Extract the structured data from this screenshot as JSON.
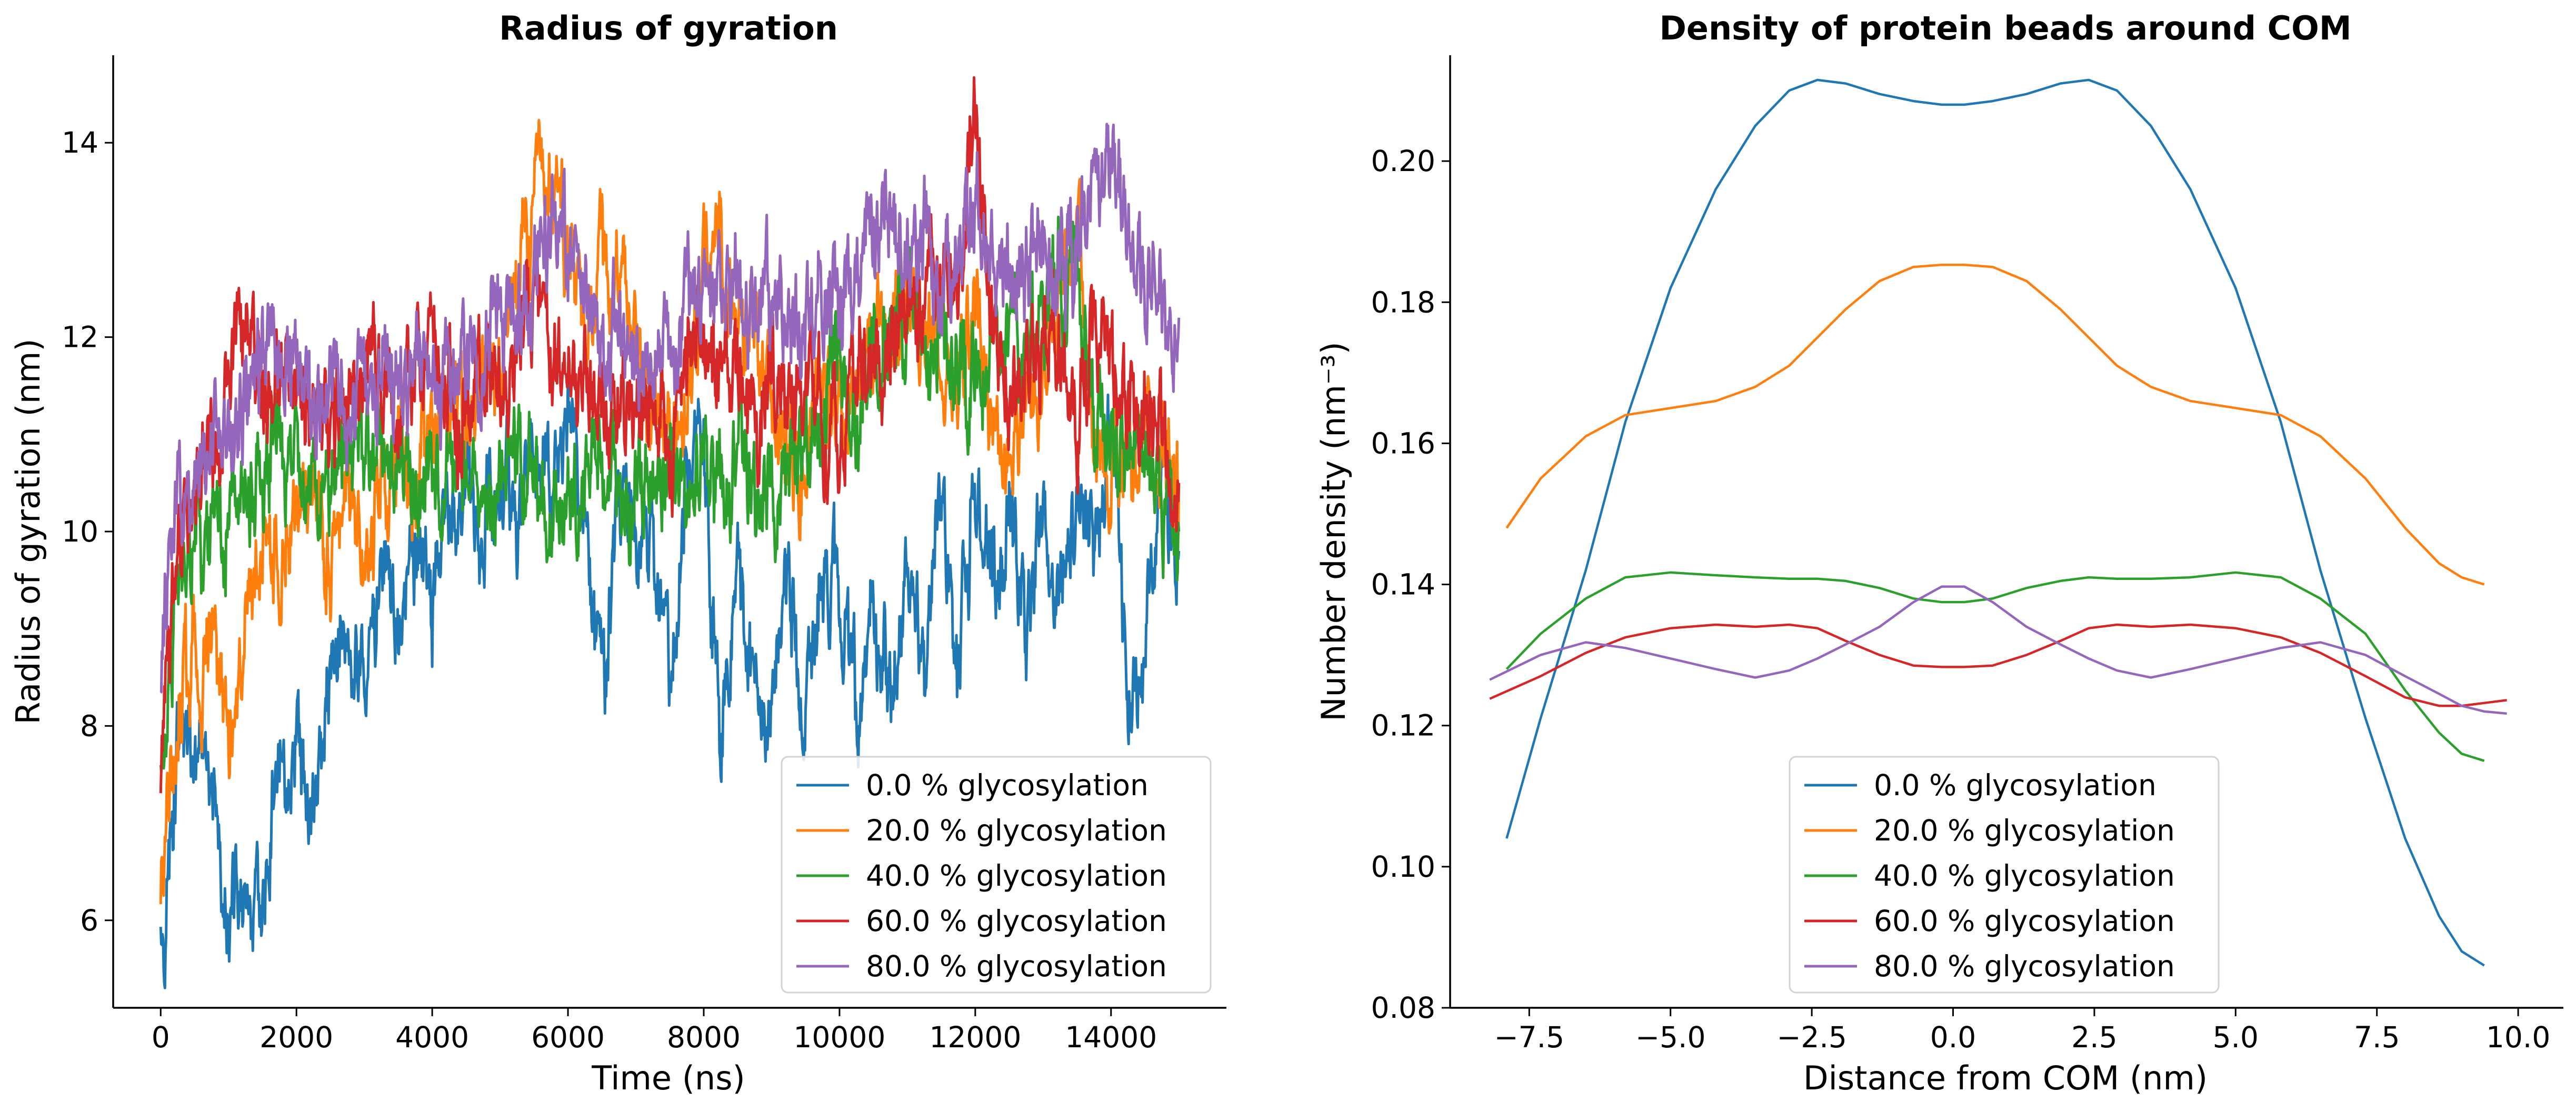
{
  "colors": {
    "0.0 % glycosylation": "#1f77b4",
    "20.0 % glycosylation": "#ff7f0e",
    "40.0 % glycosylation": "#2ca02c",
    "60.0 % glycosylation": "#d62728",
    "80.0 % glycosylation": "#9467bd"
  },
  "chart_data": [
    {
      "type": "line",
      "title": "Radius of gyration",
      "xlabel": "Time (ns)",
      "ylabel": "Radius of gyration (nm)",
      "xlim": [
        -700,
        15700
      ],
      "ylim": [
        5.1,
        14.9
      ],
      "xticks": [
        0,
        2000,
        4000,
        6000,
        8000,
        10000,
        12000,
        14000
      ],
      "xtick_labels": [
        "0",
        "2000",
        "4000",
        "6000",
        "8000",
        "10000",
        "12000",
        "14000"
      ],
      "yticks": [
        6,
        8,
        10,
        12,
        14
      ],
      "ytick_labels": [
        "6",
        "8",
        "10",
        "12",
        "14"
      ],
      "legend": "lower-right",
      "grid": false,
      "series": [
        {
          "name": "0.0 % glycosylation",
          "x": [
            0,
            250,
            500,
            750,
            1000,
            1250,
            1500,
            1750,
            2000,
            2250,
            2500,
            2750,
            3000,
            3250,
            3500,
            3750,
            4000,
            4250,
            4500,
            4750,
            5000,
            5250,
            5500,
            5750,
            6000,
            6250,
            6500,
            6750,
            7000,
            7250,
            7500,
            7750,
            8000,
            8250,
            8500,
            8750,
            9000,
            9250,
            9500,
            9750,
            10000,
            10250,
            10500,
            10750,
            11000,
            11250,
            11500,
            11750,
            12000,
            12250,
            12500,
            12750,
            13000,
            13250,
            13500,
            13750,
            14000,
            14250,
            14500,
            14750,
            15000
          ],
          "y": [
            5.7,
            7.5,
            8.0,
            7.0,
            6.2,
            6.0,
            6.5,
            7.6,
            8.0,
            7.3,
            8.3,
            9.0,
            8.6,
            9.5,
            9.0,
            9.8,
            9.3,
            10.0,
            10.5,
            10.0,
            10.8,
            10.2,
            11.0,
            10.5,
            11.3,
            10.0,
            8.5,
            9.8,
            10.3,
            10.0,
            8.7,
            10.5,
            11.0,
            7.8,
            9.5,
            8.5,
            8.0,
            9.8,
            8.0,
            9.5,
            9.5,
            8.2,
            9.5,
            8.5,
            9.5,
            8.8,
            10.5,
            8.5,
            10.5,
            9.5,
            10.2,
            9.0,
            10.2,
            9.5,
            10.5,
            10.0,
            11.0,
            8.5,
            9.0,
            10.5,
            9.8
          ]
        },
        {
          "name": "20.0 % glycosylation",
          "x": [
            0,
            250,
            500,
            750,
            1000,
            1250,
            1500,
            1750,
            2000,
            2250,
            2500,
            2750,
            3000,
            3250,
            3500,
            3750,
            4000,
            4250,
            4500,
            4750,
            5000,
            5250,
            5500,
            5750,
            6000,
            6250,
            6500,
            6750,
            7000,
            7250,
            7500,
            7750,
            8000,
            8250,
            8500,
            8750,
            9000,
            9250,
            9500,
            9750,
            10000,
            10250,
            10500,
            10750,
            11000,
            11250,
            11500,
            11750,
            12000,
            12250,
            12500,
            12750,
            13000,
            13250,
            13500,
            13750,
            14000,
            14250,
            14500,
            14750,
            15000
          ],
          "y": [
            6.5,
            8.2,
            8.8,
            8.5,
            8.0,
            9.0,
            9.8,
            9.5,
            10.0,
            10.3,
            10.0,
            10.5,
            10.2,
            10.3,
            10.8,
            10.5,
            11.0,
            11.3,
            11.3,
            11.5,
            12.0,
            12.8,
            13.2,
            13.5,
            13.0,
            12.0,
            12.8,
            12.5,
            12.0,
            11.0,
            10.8,
            11.5,
            12.5,
            13.0,
            12.2,
            12.2,
            11.5,
            11.0,
            10.8,
            11.5,
            11.0,
            11.3,
            11.8,
            12.0,
            12.5,
            12.0,
            11.8,
            12.0,
            12.2,
            11.0,
            10.8,
            11.5,
            11.5,
            12.5,
            13.0,
            11.0,
            10.8,
            10.5,
            11.0,
            11.0,
            10.5
          ]
        },
        {
          "name": "40.0 % glycosylation",
          "x": [
            0,
            250,
            500,
            750,
            1000,
            1250,
            1500,
            1750,
            2000,
            2250,
            2500,
            2750,
            3000,
            3250,
            3500,
            3750,
            4000,
            4250,
            4500,
            4750,
            5000,
            5250,
            5500,
            5750,
            6000,
            6250,
            6500,
            6750,
            7000,
            7250,
            7500,
            7750,
            8000,
            8250,
            8500,
            8750,
            9000,
            9250,
            9500,
            9750,
            10000,
            10250,
            10500,
            10750,
            11000,
            11250,
            11500,
            11750,
            12000,
            12250,
            12500,
            12750,
            13000,
            13250,
            13500,
            13750,
            14000,
            14250,
            14500,
            14750,
            15000
          ],
          "y": [
            7.5,
            9.5,
            9.8,
            10.0,
            10.2,
            10.5,
            10.5,
            10.8,
            10.6,
            10.8,
            10.5,
            10.7,
            11.0,
            10.8,
            10.8,
            10.6,
            10.5,
            10.8,
            11.0,
            10.5,
            10.8,
            10.8,
            10.6,
            10.5,
            10.4,
            10.5,
            10.8,
            10.5,
            10.2,
            10.5,
            10.8,
            10.5,
            10.8,
            10.5,
            10.8,
            10.3,
            10.5,
            10.5,
            11.0,
            11.2,
            11.5,
            11.0,
            11.8,
            12.2,
            12.0,
            11.8,
            12.0,
            11.5,
            11.5,
            11.8,
            12.0,
            11.5,
            12.2,
            12.8,
            12.5,
            11.5,
            11.0,
            10.8,
            11.0,
            10.5,
            10.0
          ]
        },
        {
          "name": "60.0 % glycosylation",
          "x": [
            0,
            250,
            500,
            750,
            1000,
            1250,
            1500,
            1750,
            2000,
            2250,
            2500,
            2750,
            3000,
            3250,
            3500,
            3750,
            4000,
            4250,
            4500,
            4750,
            5000,
            5250,
            5500,
            5750,
            6000,
            6250,
            6500,
            6750,
            7000,
            7250,
            7500,
            7750,
            8000,
            8250,
            8500,
            8750,
            9000,
            9250,
            9500,
            9750,
            10000,
            10250,
            10500,
            10750,
            11000,
            11250,
            11500,
            11750,
            12000,
            12250,
            12500,
            12750,
            13000,
            13250,
            13500,
            13750,
            14000,
            14250,
            14500,
            14750,
            15000
          ],
          "y": [
            7.0,
            10.0,
            10.5,
            11.0,
            11.5,
            12.0,
            11.5,
            11.8,
            11.5,
            11.2,
            11.0,
            11.5,
            11.8,
            11.5,
            11.3,
            11.8,
            12.0,
            11.5,
            11.3,
            11.5,
            11.8,
            12.0,
            12.5,
            12.0,
            11.8,
            11.5,
            11.3,
            11.0,
            11.5,
            11.0,
            10.8,
            11.5,
            12.0,
            11.5,
            11.5,
            11.0,
            11.5,
            11.3,
            11.5,
            11.0,
            11.2,
            11.5,
            11.8,
            12.0,
            12.3,
            12.5,
            12.8,
            12.5,
            14.5,
            12.0,
            11.8,
            11.5,
            11.8,
            12.0,
            11.5,
            12.0,
            11.5,
            11.2,
            11.5,
            11.0,
            10.5
          ]
        },
        {
          "name": "80.0 % glycosylation",
          "x": [
            0,
            250,
            500,
            750,
            1000,
            1250,
            1500,
            1750,
            2000,
            2250,
            2500,
            2750,
            3000,
            3250,
            3500,
            3750,
            4000,
            4250,
            4500,
            4750,
            5000,
            5250,
            5500,
            5750,
            6000,
            6250,
            6500,
            6750,
            7000,
            7250,
            7500,
            7750,
            8000,
            8250,
            8500,
            8750,
            9000,
            9250,
            9500,
            9750,
            10000,
            10250,
            10500,
            10750,
            11000,
            11250,
            11500,
            11750,
            12000,
            12250,
            12500,
            12750,
            13000,
            13250,
            13500,
            13750,
            14000,
            14250,
            14500,
            14750,
            15000
          ],
          "y": [
            8.5,
            10.3,
            10.5,
            10.8,
            11.2,
            11.5,
            11.8,
            11.7,
            11.5,
            11.3,
            11.5,
            11.2,
            11.5,
            11.4,
            11.5,
            11.6,
            11.5,
            11.8,
            11.6,
            12.0,
            12.2,
            12.5,
            12.8,
            13.2,
            13.0,
            12.5,
            12.0,
            12.3,
            12.0,
            11.8,
            12.0,
            12.3,
            12.5,
            12.8,
            12.5,
            12.2,
            12.5,
            12.0,
            12.2,
            12.5,
            12.5,
            12.8,
            13.3,
            13.5,
            13.0,
            13.2,
            12.8,
            12.9,
            13.2,
            13.0,
            12.5,
            12.8,
            13.0,
            12.5,
            12.8,
            13.2,
            14.0,
            13.0,
            12.8,
            12.5,
            12.2
          ]
        }
      ]
    },
    {
      "type": "line",
      "title": "Density of protein beads around COM",
      "xlabel": "Distance from COM (nm)",
      "ylabel": "Number density (nm⁻³)",
      "xlim": [
        -8.9,
        10.8
      ],
      "ylim": [
        0.08,
        0.215
      ],
      "xticks": [
        -7.5,
        -5.0,
        -2.5,
        0.0,
        2.5,
        5.0,
        7.5,
        10.0
      ],
      "xtick_labels": [
        "−7.5",
        "−5.0",
        "−2.5",
        "0.0",
        "2.5",
        "5.0",
        "7.5",
        "10.0"
      ],
      "yticks": [
        0.08,
        0.1,
        0.12,
        0.14,
        0.16,
        0.18,
        0.2
      ],
      "ytick_labels": [
        "0.08",
        "0.10",
        "0.12",
        "0.14",
        "0.16",
        "0.18",
        "0.20"
      ],
      "legend": "lower-center",
      "grid": false,
      "series": [
        {
          "name": "0.0 % glycosylation",
          "x": [
            -7.9,
            -7.3,
            -6.5,
            -5.8,
            -5.0,
            -4.2,
            -3.5,
            -2.9,
            -2.4,
            -1.9,
            -1.3,
            -0.7,
            -0.2,
            0.2,
            0.7,
            1.3,
            1.9,
            2.4,
            2.9,
            3.5,
            4.2,
            5.0,
            5.8,
            6.5,
            7.3,
            8.0,
            8.6,
            9.0,
            9.4
          ],
          "y": [
            0.104,
            0.121,
            0.142,
            0.163,
            0.182,
            0.196,
            0.205,
            0.21,
            0.2115,
            0.211,
            0.2095,
            0.2085,
            0.208,
            0.208,
            0.2085,
            0.2095,
            0.211,
            0.2115,
            0.21,
            0.205,
            0.196,
            0.182,
            0.163,
            0.142,
            0.121,
            0.104,
            0.093,
            0.088,
            0.086
          ]
        },
        {
          "name": "20.0 % glycosylation",
          "x": [
            -7.9,
            -7.3,
            -6.5,
            -5.8,
            -5.0,
            -4.2,
            -3.5,
            -2.9,
            -2.4,
            -1.9,
            -1.3,
            -0.7,
            -0.2,
            0.2,
            0.7,
            1.3,
            1.9,
            2.4,
            2.9,
            3.5,
            4.2,
            5.0,
            5.8,
            6.5,
            7.3,
            8.0,
            8.6,
            9.0,
            9.4
          ],
          "y": [
            0.148,
            0.155,
            0.161,
            0.164,
            0.165,
            0.166,
            0.168,
            0.171,
            0.175,
            0.179,
            0.183,
            0.185,
            0.1853,
            0.1853,
            0.185,
            0.183,
            0.179,
            0.175,
            0.171,
            0.168,
            0.166,
            0.165,
            0.164,
            0.161,
            0.155,
            0.148,
            0.143,
            0.141,
            0.14
          ]
        },
        {
          "name": "40.0 % glycosylation",
          "x": [
            -7.9,
            -7.3,
            -6.5,
            -5.8,
            -5.0,
            -4.2,
            -3.5,
            -2.9,
            -2.4,
            -1.9,
            -1.3,
            -0.7,
            -0.2,
            0.2,
            0.7,
            1.3,
            1.9,
            2.4,
            2.9,
            3.5,
            4.2,
            5.0,
            5.8,
            6.5,
            7.3,
            8.0,
            8.6,
            9.0,
            9.4
          ],
          "y": [
            0.128,
            0.133,
            0.138,
            0.141,
            0.1417,
            0.1413,
            0.141,
            0.1408,
            0.1408,
            0.1405,
            0.1395,
            0.138,
            0.1375,
            0.1375,
            0.138,
            0.1395,
            0.1405,
            0.141,
            0.1408,
            0.1408,
            0.141,
            0.1417,
            0.141,
            0.138,
            0.133,
            0.125,
            0.119,
            0.116,
            0.115
          ]
        },
        {
          "name": "60.0 % glycosylation",
          "x": [
            -8.2,
            -7.3,
            -6.5,
            -5.8,
            -5.0,
            -4.2,
            -3.5,
            -2.9,
            -2.4,
            -1.9,
            -1.3,
            -0.7,
            -0.2,
            0.2,
            0.7,
            1.3,
            1.9,
            2.4,
            2.9,
            3.5,
            4.2,
            5.0,
            5.8,
            6.5,
            7.3,
            8.0,
            8.6,
            9.0,
            9.4,
            9.8
          ],
          "y": [
            0.1238,
            0.127,
            0.1303,
            0.1325,
            0.1338,
            0.1343,
            0.134,
            0.1343,
            0.1338,
            0.132,
            0.13,
            0.1285,
            0.1283,
            0.1283,
            0.1285,
            0.13,
            0.132,
            0.1338,
            0.1343,
            0.134,
            0.1343,
            0.1338,
            0.1325,
            0.1303,
            0.127,
            0.124,
            0.1228,
            0.1228,
            0.1232,
            0.1236
          ]
        },
        {
          "name": "80.0 % glycosylation",
          "x": [
            -8.2,
            -7.3,
            -6.5,
            -5.8,
            -5.0,
            -4.2,
            -3.5,
            -2.9,
            -2.4,
            -1.9,
            -1.3,
            -0.7,
            -0.2,
            0.2,
            0.7,
            1.3,
            1.9,
            2.4,
            2.9,
            3.5,
            4.2,
            5.0,
            5.8,
            6.5,
            7.3,
            8.0,
            8.6,
            9.0,
            9.4,
            9.8
          ],
          "y": [
            0.1265,
            0.13,
            0.1318,
            0.131,
            0.1295,
            0.128,
            0.1268,
            0.1278,
            0.1295,
            0.1315,
            0.134,
            0.1375,
            0.1397,
            0.1397,
            0.1375,
            0.134,
            0.1315,
            0.1295,
            0.1278,
            0.1268,
            0.128,
            0.1295,
            0.131,
            0.1318,
            0.13,
            0.127,
            0.1245,
            0.1228,
            0.122,
            0.1217
          ]
        }
      ]
    }
  ]
}
